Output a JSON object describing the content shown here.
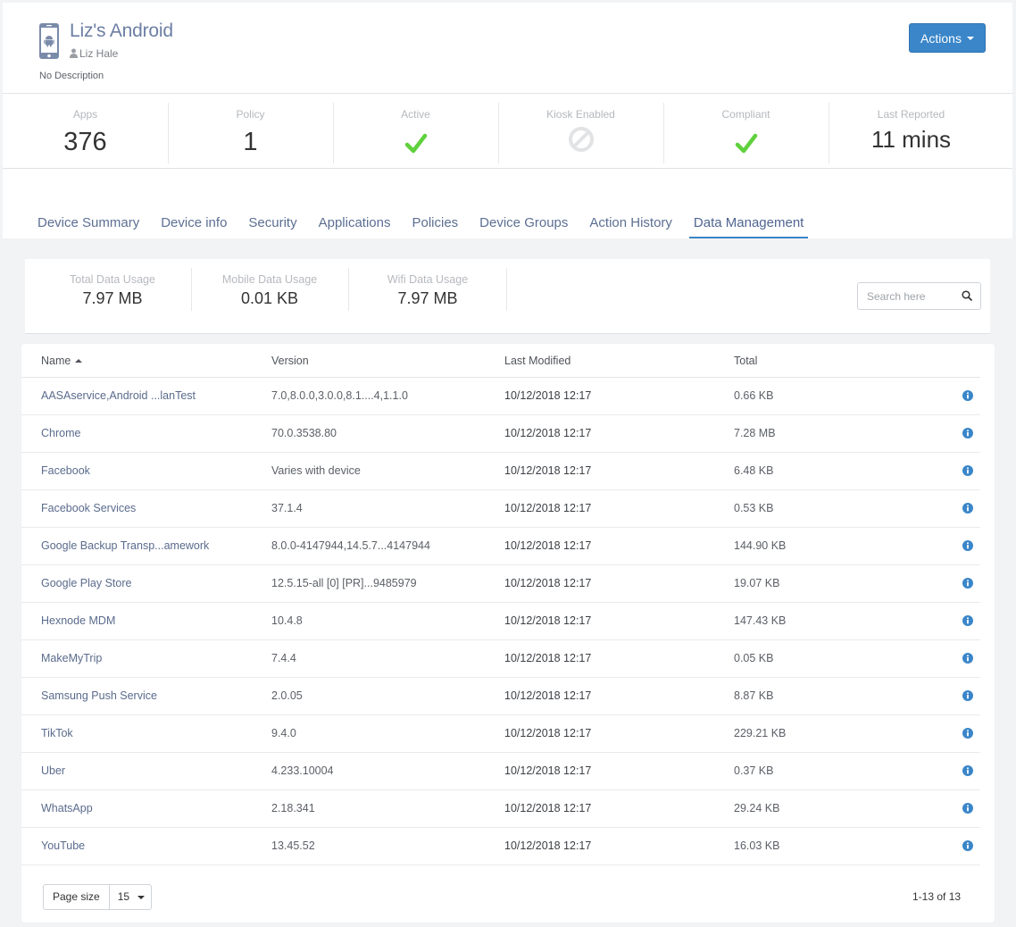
{
  "device": {
    "name": "Liz's Android",
    "owner": "Liz Hale",
    "description": "No Description",
    "actions_label": "Actions"
  },
  "stats": [
    {
      "label": "Apps",
      "value": "376"
    },
    {
      "label": "Policy",
      "value": "1"
    },
    {
      "label": "Active",
      "icon": "check-icon",
      "color": "#5fd13d"
    },
    {
      "label": "Kiosk Enabled",
      "icon": "disabled-icon",
      "color": "#e2e3e5"
    },
    {
      "label": "Compliant",
      "icon": "check-icon",
      "color": "#5fd13d"
    },
    {
      "label": "Last Reported",
      "value": "11 mins"
    }
  ],
  "tabs": [
    {
      "label": "Device Summary"
    },
    {
      "label": "Device info"
    },
    {
      "label": "Security"
    },
    {
      "label": "Applications"
    },
    {
      "label": "Policies"
    },
    {
      "label": "Device Groups"
    },
    {
      "label": "Action History"
    },
    {
      "label": "Data Management",
      "active": true
    }
  ],
  "usage": {
    "total_label": "Total Data Usage",
    "total_value": "7.97 MB",
    "mobile_label": "Mobile Data Usage",
    "mobile_value": "0.01 KB",
    "wifi_label": "Wifi Data Usage",
    "wifi_value": "7.97 MB",
    "search_placeholder": "Search here"
  },
  "table": {
    "columns": {
      "name": "Name",
      "version": "Version",
      "modified": "Last Modified",
      "total": "Total"
    },
    "rows": [
      {
        "name": "AASAservice,Android ...lanTest",
        "version": "7.0,8.0.0,3.0.0,8.1....4,1.1.0",
        "modified": "10/12/2018 12:17",
        "total": "0.66 KB"
      },
      {
        "name": "Chrome",
        "version": "70.0.3538.80",
        "modified": "10/12/2018 12:17",
        "total": "7.28 MB"
      },
      {
        "name": "Facebook",
        "version": "Varies with device",
        "modified": "10/12/2018 12:17",
        "total": "6.48 KB"
      },
      {
        "name": "Facebook Services",
        "version": "37.1.4",
        "modified": "10/12/2018 12:17",
        "total": "0.53 KB"
      },
      {
        "name": "Google Backup Transp...amework",
        "version": "8.0.0-4147944,14.5.7...4147944",
        "modified": "10/12/2018 12:17",
        "total": "144.90 KB"
      },
      {
        "name": "Google Play Store",
        "version": "12.5.15-all [0] [PR]...9485979",
        "modified": "10/12/2018 12:17",
        "total": "19.07 KB"
      },
      {
        "name": "Hexnode MDM",
        "version": "10.4.8",
        "modified": "10/12/2018 12:17",
        "total": "147.43 KB"
      },
      {
        "name": "MakeMyTrip",
        "version": "7.4.4",
        "modified": "10/12/2018 12:17",
        "total": "0.05 KB"
      },
      {
        "name": "Samsung Push Service",
        "version": "2.0.05",
        "modified": "10/12/2018 12:17",
        "total": "8.87 KB"
      },
      {
        "name": "TikTok",
        "version": "9.4.0",
        "modified": "10/12/2018 12:17",
        "total": "229.21 KB"
      },
      {
        "name": "Uber",
        "version": "4.233.10004",
        "modified": "10/12/2018 12:17",
        "total": "0.37 KB"
      },
      {
        "name": "WhatsApp",
        "version": "2.18.341",
        "modified": "10/12/2018 12:17",
        "total": "29.24 KB"
      },
      {
        "name": "YouTube",
        "version": "13.45.52",
        "modified": "10/12/2018 12:17",
        "total": "16.03 KB"
      }
    ]
  },
  "footer": {
    "page_size_label": "Page size",
    "page_size_value": "15",
    "range": "1-13 of 13"
  },
  "colors": {
    "accent": "#3a86c9",
    "link": "#5a6b8c",
    "info_icon": "#3a86c9"
  }
}
